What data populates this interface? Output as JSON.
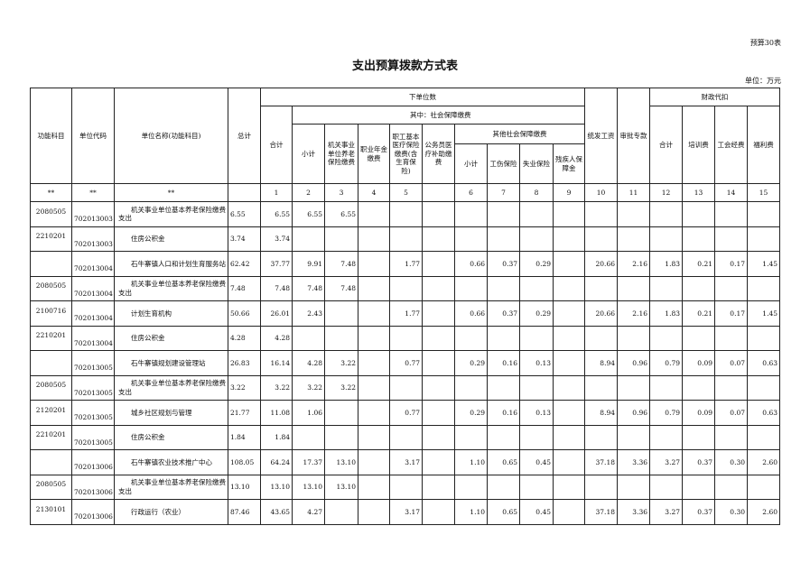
{
  "form_no": "预算30表",
  "title": "支出预算拨款方式表",
  "unit": "单位：万元",
  "headers": {
    "func": "功能科目",
    "ucode": "单位代码",
    "uname": "单位名称(功能科目)",
    "total": "总计",
    "lower": "下单位数",
    "lower_total": "合计",
    "social": "其中：社会保障缴费",
    "sub": "小计",
    "pension": "机关事业单位养老保险缴费",
    "annuity": "职业年金缴费",
    "medical": "职工基本医疗保险缴费(含生育保险)",
    "civil": "公务员医疗补助缴费",
    "other": "其他社会保障缴费",
    "other_sub": "小计",
    "injury": "工伤保险",
    "unemp": "失业保险",
    "disab": "残疾人保障金",
    "salary": "统发工资",
    "special": "审批专款",
    "fiscal": "财政代扣",
    "f_total": "合计",
    "training": "培训费",
    "union": "工会经费",
    "welfare": "福利费"
  },
  "number_row": [
    "**",
    "**",
    "**",
    "",
    "1",
    "2",
    "3",
    "4",
    "5",
    "",
    "6",
    "7",
    "8",
    "9",
    "10",
    "11",
    "12",
    "13",
    "14",
    "15"
  ],
  "rows": [
    {
      "func": "2080505",
      "ucode": "702013003",
      "name": "机关事业单位基本养老保险缴费支出",
      "total": "6.55",
      "v": [
        "6.55",
        "6.55",
        "6.55",
        "",
        "",
        "",
        "",
        "",
        "",
        "",
        "",
        "",
        "",
        "",
        "",
        ""
      ]
    },
    {
      "func": "2210201",
      "ucode": "702013003",
      "name": "住房公积金",
      "total": "3.74",
      "v": [
        "3.74",
        "",
        "",
        "",
        "",
        "",
        "",
        "",
        "",
        "",
        "",
        "",
        "",
        "",
        "",
        ""
      ]
    },
    {
      "func": "",
      "ucode": "702013004",
      "name": "石牛寨镇人口和计划生育服务站",
      "total": "62.42",
      "v": [
        "37.77",
        "9.91",
        "7.48",
        "",
        "1.77",
        "",
        "0.66",
        "0.37",
        "0.29",
        "",
        "20.66",
        "2.16",
        "1.83",
        "0.21",
        "0.17",
        "1.45"
      ]
    },
    {
      "func": "2080505",
      "ucode": "702013004",
      "name": "机关事业单位基本养老保险缴费支出",
      "total": "7.48",
      "v": [
        "7.48",
        "7.48",
        "7.48",
        "",
        "",
        "",
        "",
        "",
        "",
        "",
        "",
        "",
        "",
        "",
        "",
        ""
      ]
    },
    {
      "func": "2100716",
      "ucode": "702013004",
      "name": "计划生育机构",
      "total": "50.66",
      "v": [
        "26.01",
        "2.43",
        "",
        "",
        "1.77",
        "",
        "0.66",
        "0.37",
        "0.29",
        "",
        "20.66",
        "2.16",
        "1.83",
        "0.21",
        "0.17",
        "1.45"
      ]
    },
    {
      "func": "2210201",
      "ucode": "702013004",
      "name": "住房公积金",
      "total": "4.28",
      "v": [
        "4.28",
        "",
        "",
        "",
        "",
        "",
        "",
        "",
        "",
        "",
        "",
        "",
        "",
        "",
        "",
        ""
      ]
    },
    {
      "func": "",
      "ucode": "702013005",
      "name": "石牛寨镇规划建设管理站",
      "total": "26.83",
      "v": [
        "16.14",
        "4.28",
        "3.22",
        "",
        "0.77",
        "",
        "0.29",
        "0.16",
        "0.13",
        "",
        "8.94",
        "0.96",
        "0.79",
        "0.09",
        "0.07",
        "0.63"
      ]
    },
    {
      "func": "2080505",
      "ucode": "702013005",
      "name": "机关事业单位基本养老保险缴费支出",
      "total": "3.22",
      "v": [
        "3.22",
        "3.22",
        "3.22",
        "",
        "",
        "",
        "",
        "",
        "",
        "",
        "",
        "",
        "",
        "",
        "",
        ""
      ]
    },
    {
      "func": "2120201",
      "ucode": "702013005",
      "name": "城乡社区规划与管理",
      "total": "21.77",
      "v": [
        "11.08",
        "1.06",
        "",
        "",
        "0.77",
        "",
        "0.29",
        "0.16",
        "0.13",
        "",
        "8.94",
        "0.96",
        "0.79",
        "0.09",
        "0.07",
        "0.63"
      ]
    },
    {
      "func": "2210201",
      "ucode": "702013005",
      "name": "住房公积金",
      "total": "1.84",
      "v": [
        "1.84",
        "",
        "",
        "",
        "",
        "",
        "",
        "",
        "",
        "",
        "",
        "",
        "",
        "",
        "",
        ""
      ]
    },
    {
      "func": "",
      "ucode": "702013006",
      "name": "石牛寨镇农业技术推广中心",
      "total": "108.05",
      "v": [
        "64.24",
        "17.37",
        "13.10",
        "",
        "3.17",
        "",
        "1.10",
        "0.65",
        "0.45",
        "",
        "37.18",
        "3.36",
        "3.27",
        "0.37",
        "0.30",
        "2.60"
      ]
    },
    {
      "func": "2080505",
      "ucode": "702013006",
      "name": "机关事业单位基本养老保险缴费支出",
      "total": "13.10",
      "v": [
        "13.10",
        "13.10",
        "13.10",
        "",
        "",
        "",
        "",
        "",
        "",
        "",
        "",
        "",
        "",
        "",
        "",
        ""
      ]
    },
    {
      "func": "2130101",
      "ucode": "702013006",
      "name": "行政运行（农业）",
      "total": "87.46",
      "v": [
        "43.65",
        "4.27",
        "",
        "",
        "3.17",
        "",
        "1.10",
        "0.65",
        "0.45",
        "",
        "37.18",
        "3.36",
        "3.27",
        "0.37",
        "0.30",
        "2.60"
      ]
    }
  ]
}
